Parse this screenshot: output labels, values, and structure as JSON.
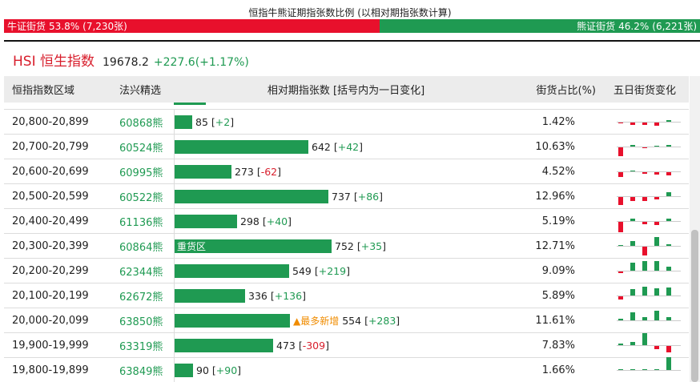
{
  "ratio": {
    "title": "恒指牛熊证期指张数比例 (以相对期指张数计算)",
    "bull_label": "牛证街货",
    "bull_pct": "53.8%",
    "bull_count": "(7,230张)",
    "bear_label": "熊证街货",
    "bear_pct": "46.2%",
    "bear_count": "(6,221张)"
  },
  "index": {
    "name": "HSI 恒生指数",
    "price": "19678.2",
    "change": "+227.6(+1.17%)"
  },
  "table": {
    "headers": {
      "range": "恒指指数区域",
      "code": "法兴精选",
      "contracts": "相对期指张数 [括号内为一日变化]",
      "share": "街货占比(%)",
      "five_day": "五日街货变化"
    },
    "max_contracts": 752,
    "rows": [
      {
        "range": "20,800-20,899",
        "code": "60868熊",
        "contracts": 85,
        "contracts_text": "85",
        "delta": "+2",
        "share": "1.42%",
        "tag": "",
        "five_day": [
          -1,
          -3,
          -3,
          -4,
          2
        ]
      },
      {
        "range": "20,700-20,799",
        "code": "60524熊",
        "contracts": 642,
        "contracts_text": "642",
        "delta": "+42",
        "share": "10.63%",
        "tag": "",
        "five_day": [
          -11,
          2,
          -1,
          1,
          2
        ]
      },
      {
        "range": "20,600-20,699",
        "code": "60995熊",
        "contracts": 273,
        "contracts_text": "273",
        "delta": "-62",
        "share": "4.52%",
        "tag": "",
        "five_day": [
          -6,
          1,
          -2,
          -3,
          -4
        ]
      },
      {
        "range": "20,500-20,599",
        "code": "60522熊",
        "contracts": 737,
        "contracts_text": "737",
        "delta": "+86",
        "share": "12.96%",
        "tag": "",
        "five_day": [
          -10,
          -5,
          -5,
          -3,
          5
        ]
      },
      {
        "range": "20,400-20,499",
        "code": "61136熊",
        "contracts": 298,
        "contracts_text": "298",
        "delta": "+40",
        "share": "5.19%",
        "tag": "",
        "five_day": [
          -13,
          3,
          -3,
          -4,
          3
        ]
      },
      {
        "range": "20,300-20,399",
        "code": "60864熊",
        "contracts": 752,
        "contracts_text": "752",
        "delta": "+35",
        "share": "12.71%",
        "tag": "重货区",
        "five_day": [
          1,
          6,
          -11,
          11,
          2
        ]
      },
      {
        "range": "20,200-20,299",
        "code": "62344熊",
        "contracts": 549,
        "contracts_text": "549",
        "delta": "+219",
        "share": "9.09%",
        "tag": "",
        "five_day": [
          -2,
          10,
          12,
          12,
          5
        ]
      },
      {
        "range": "20,100-20,199",
        "code": "62672熊",
        "contracts": 336,
        "contracts_text": "336",
        "delta": "+136",
        "share": "5.89%",
        "tag": "",
        "five_day": [
          -4,
          8,
          11,
          9,
          10
        ]
      },
      {
        "range": "20,000-20,099",
        "code": "63850熊",
        "contracts": 554,
        "contracts_text": "554",
        "delta": "+283",
        "share": "11.61%",
        "tag": "最多新增",
        "five_day": [
          2,
          10,
          4,
          12,
          4
        ]
      },
      {
        "range": "19,900-19,999",
        "code": "63319熊",
        "contracts": 473,
        "contracts_text": "473",
        "delta": "-309",
        "share": "7.83%",
        "tag": "",
        "five_day": [
          2,
          4,
          15,
          -4,
          -8
        ]
      },
      {
        "range": "19,800-19,899",
        "code": "63849熊",
        "contracts": 90,
        "contracts_text": "90",
        "delta": "+90",
        "share": "1.66%",
        "tag": "",
        "five_day": [
          0,
          0,
          0,
          0,
          16
        ]
      }
    ]
  },
  "colors": {
    "bull": "#e8102c",
    "bear": "#1f9a52",
    "new_tag": "#f08c00"
  }
}
